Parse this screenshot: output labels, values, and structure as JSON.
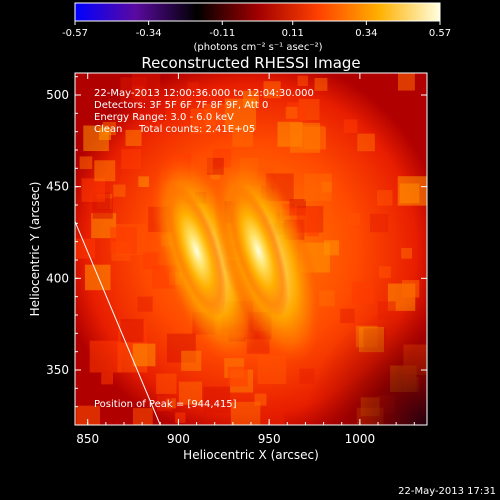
{
  "chart_data": {
    "type": "heatmap",
    "title": "Reconstructed RHESSI Image",
    "xlabel": "Heliocentric X (arcsec)",
    "ylabel": "Heliocentric Y (arcsec)",
    "xlim": [
      843,
      1037
    ],
    "ylim": [
      320,
      512
    ],
    "x_ticks": [
      850,
      900,
      950,
      1000
    ],
    "y_ticks": [
      350,
      400,
      450,
      500
    ],
    "colorbar": {
      "ticks": [
        "-0.57",
        "-0.34",
        "-0.11",
        "0.11",
        "0.34",
        "0.57"
      ],
      "unit_text": "(photons cm⁻² s⁻¹ asec⁻²)",
      "range": [
        -0.57,
        0.57
      ],
      "colors": [
        "#0000ff",
        "#5a0aa0",
        "#000000",
        "#a00000",
        "#ff4000",
        "#ffb000",
        "#ffffe0"
      ]
    },
    "sources": [
      {
        "x": 910,
        "y": 415,
        "peak": 0.57
      },
      {
        "x": 944,
        "y": 415,
        "peak": 0.57
      }
    ],
    "limb_line": [
      [
        843,
        431
      ],
      [
        890,
        320
      ]
    ],
    "annotations": {
      "time_range": "22-May-2013 12:00:36.000 to 12:04:30.000",
      "detectors": "Detectors: 3F 5F 6F 7F 8F 9F, Att 0",
      "energy": "Energy Range: 3.0 - 6.0 keV",
      "method": "Clean",
      "counts": "Total counts: 2.41E+05",
      "peak": "Position of Peak = [944,415]"
    },
    "footer_timestamp": "22-May-2013 17:31"
  }
}
